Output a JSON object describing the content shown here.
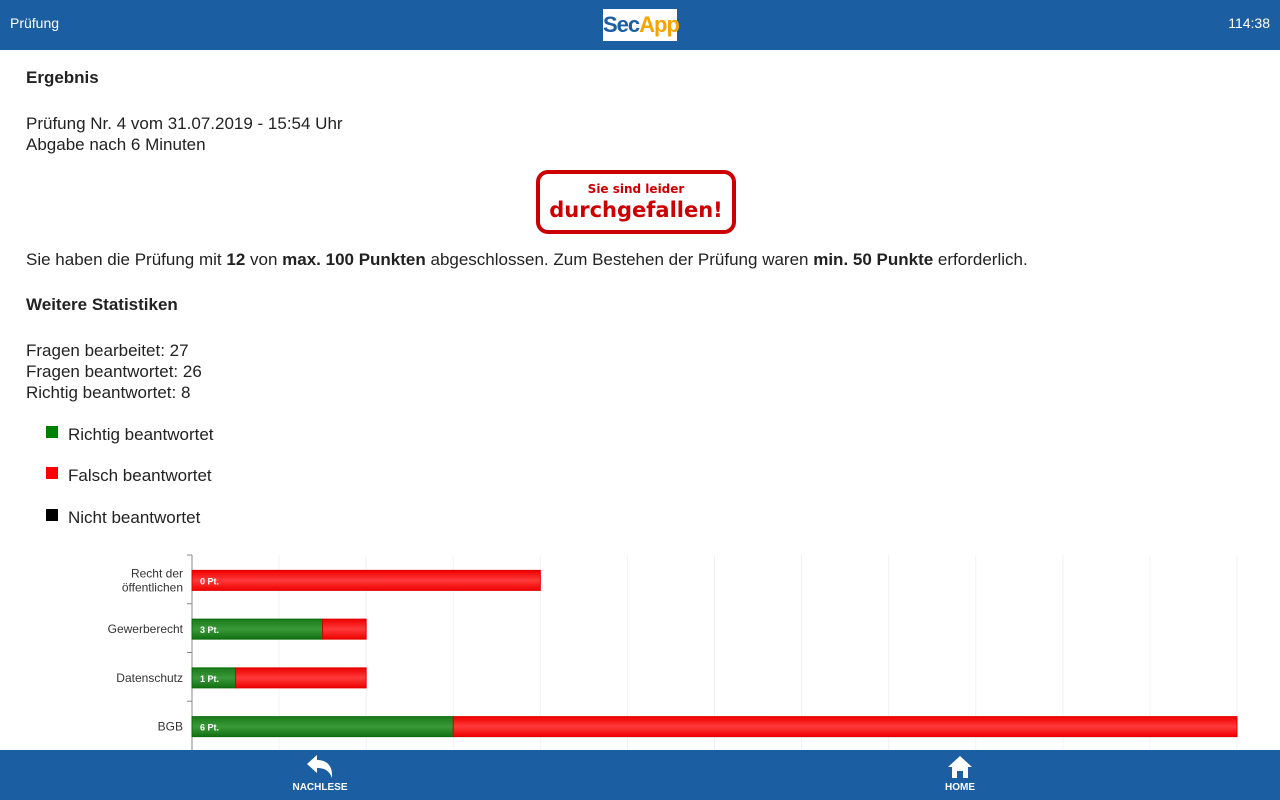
{
  "header": {
    "title": "Prüfung",
    "logo_text_a": "Sec",
    "logo_text_b": "App",
    "timer": "114:38"
  },
  "result": {
    "heading": "Ergebnis",
    "exam_line": "Prüfung Nr. 4 vom 31.07.2019 - 15:54 Uhr",
    "submit_line": "Abgabe nach 6 Minuten",
    "badge_small": "Sie sind leider",
    "badge_large": "durchgefallen!",
    "summary_parts": [
      "Sie haben die Prüfung mit ",
      "12",
      " von ",
      "max. 100 Punkten",
      " abgeschlossen. Zum Bestehen der Prüfung waren ",
      "min. 50 Punkte",
      " erforderlich."
    ]
  },
  "stats": {
    "heading": "Weitere Statistiken",
    "lines": [
      "Fragen bearbeitet: 27",
      "Fragen beantwortet: 26",
      "Richtig beantwortet: 8"
    ]
  },
  "legend": [
    {
      "label": "Richtig beantwortet",
      "color": "#008000"
    },
    {
      "label": "Falsch beantwortet",
      "color": "#ff0000"
    },
    {
      "label": "Nicht beantwortet",
      "color": "#000000"
    }
  ],
  "chart_data": {
    "type": "bar",
    "orientation": "horizontal",
    "stacked": true,
    "categories": [
      "Recht der öffentlichen",
      "Gewerberecht",
      "Datenschutz",
      "BGB"
    ],
    "category_labels": [
      [
        "Recht der",
        "öffentlichen"
      ],
      [
        "Gewerberecht"
      ],
      [
        "Datenschutz"
      ],
      [
        "BGB"
      ]
    ],
    "series": [
      {
        "name": "Richtig beantwortet",
        "color": "#008000",
        "values": [
          0,
          1.5,
          0.5,
          3
        ]
      },
      {
        "name": "Falsch beantwortet",
        "color": "#ff0000",
        "values": [
          4,
          0.5,
          1.5,
          9
        ]
      }
    ],
    "data_labels": [
      "0 Pt.",
      "3 Pt.",
      "1 Pt.",
      "6 Pt."
    ],
    "xlim": [
      0,
      12
    ],
    "grid": true
  },
  "footer": {
    "nachlese": "NACHLESE",
    "home": "HOME"
  }
}
